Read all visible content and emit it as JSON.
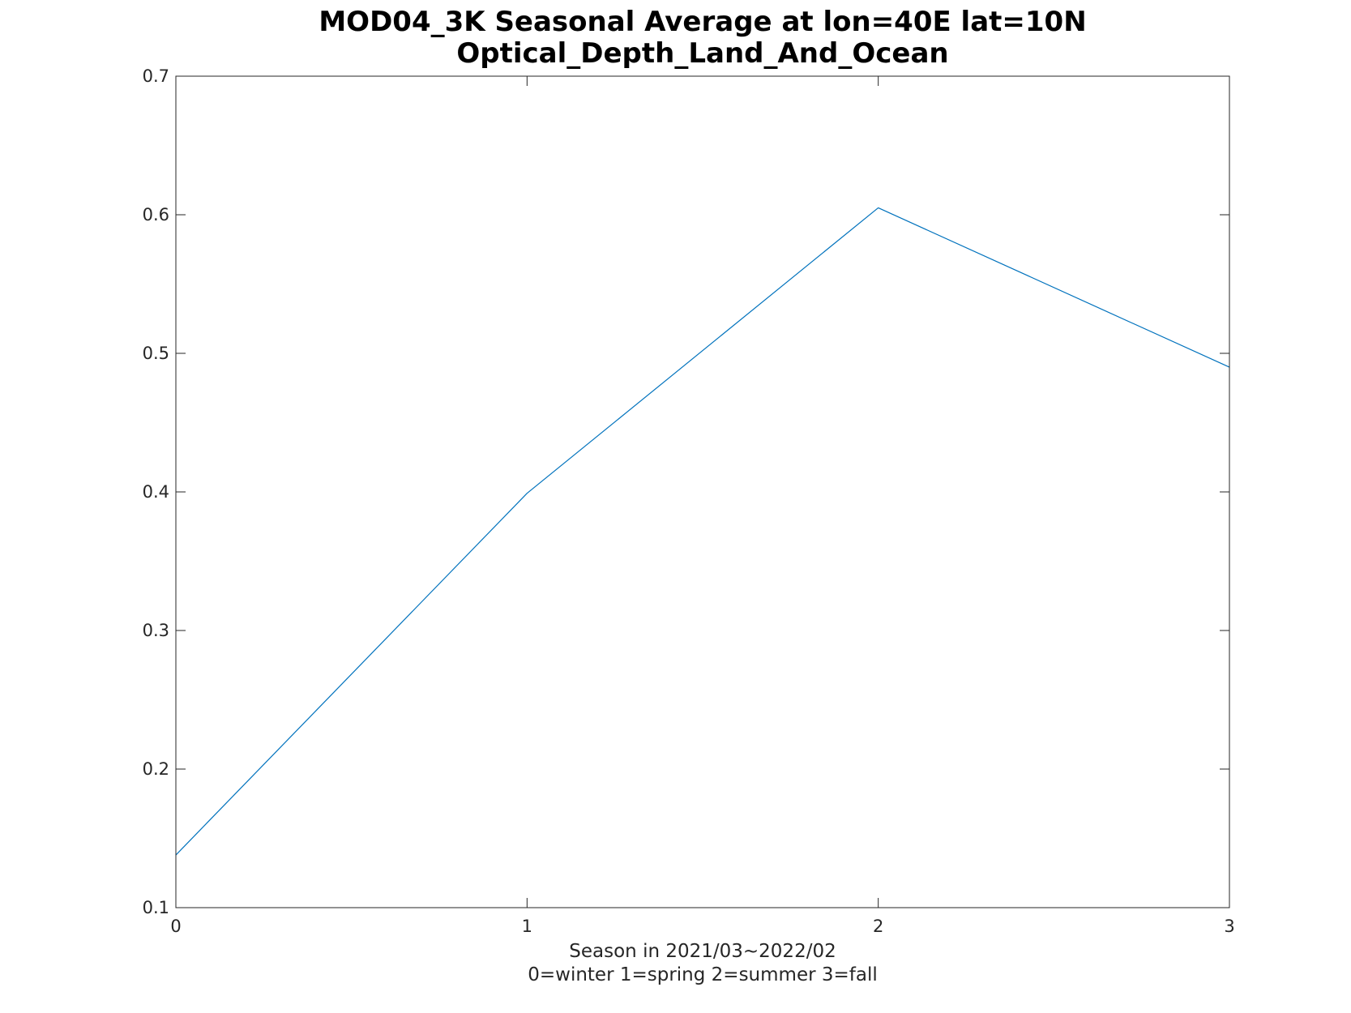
{
  "chart_data": {
    "type": "line",
    "title": [
      "MOD04_3K Seasonal Average at lon=40E lat=10N",
      "Optical_Depth_Land_And_Ocean"
    ],
    "xlabel": [
      "Season in 2021/03~2022/02",
      "0=winter 1=spring 2=summer 3=fall"
    ],
    "ylabel": "",
    "x": [
      0,
      1,
      2,
      3
    ],
    "series": [
      {
        "values": [
          0.138,
          0.399,
          0.605,
          0.49
        ],
        "color": "#0072BD"
      }
    ],
    "xlim": [
      0,
      3
    ],
    "ylim": [
      0.1,
      0.7
    ],
    "xticks": [
      0,
      1,
      2,
      3
    ],
    "xtick_labels": [
      "0",
      "1",
      "2",
      "3"
    ],
    "yticks": [
      0.1,
      0.2,
      0.3,
      0.4,
      0.5,
      0.6,
      0.7
    ],
    "ytick_labels": [
      "0.1",
      "0.2",
      "0.3",
      "0.4",
      "0.5",
      "0.6",
      "0.7"
    ],
    "grid": false,
    "box": true
  }
}
